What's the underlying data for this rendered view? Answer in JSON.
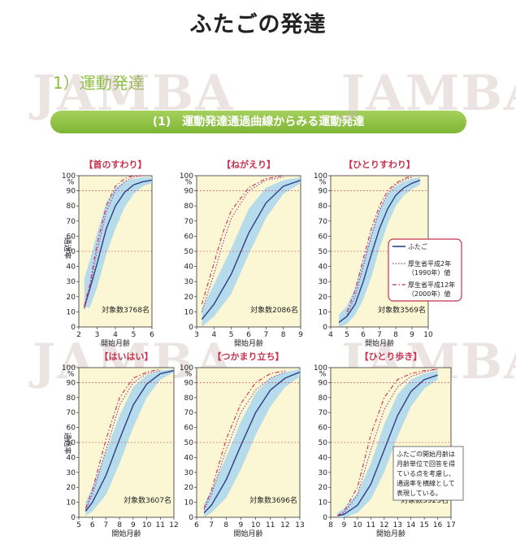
{
  "page_title": "ふたごの発達",
  "section_heading": "1）運動発達",
  "subtitle": "(1)　運動発達通過曲線からみる運動発達",
  "watermark": "JAMBA",
  "colors": {
    "twins": "#2d3f86",
    "band": "#a9d6ee",
    "y1990": "#9a3c9c",
    "y2000": "#c8324f",
    "plot_bg": "#fbf6d3",
    "title_red": "#c8324f",
    "accent_green": "#8bbf3e"
  },
  "legend": {
    "twins": "ふたご",
    "y1990_a": "厚生省平成2年",
    "y1990_b": "（1990年）値",
    "y2000_a": "厚生省平成12年",
    "y2000_b": "（2000年）値"
  },
  "annotation": [
    "ふたごの開始月齢は",
    "月齢単位で回答を得",
    "ている点を考慮し、",
    "通過率を横線として",
    "表現している。"
  ],
  "y_axis_label": "通過率",
  "x_axis_label": "開始月齢",
  "y_percent_mark": "%",
  "chart_data": [
    {
      "type": "line",
      "title": "【首のすわり】",
      "note": "対象数3768名",
      "xlim": [
        2,
        6
      ],
      "xticks": [
        2,
        3,
        4,
        5,
        6
      ],
      "ylim": [
        0,
        100
      ],
      "yticks": [
        0,
        10,
        20,
        30,
        40,
        50,
        60,
        70,
        80,
        90,
        100
      ],
      "series": [
        {
          "key": "twins",
          "x": [
            2.3,
            2.6,
            3.0,
            3.5,
            4.0,
            4.5,
            5.0,
            5.5,
            6.0
          ],
          "y": [
            13,
            25,
            42,
            65,
            80,
            89,
            94,
            96,
            97
          ]
        },
        {
          "key": "y1990",
          "x": [
            2.3,
            2.6,
            3.0,
            3.5,
            4.0,
            4.5,
            5.0,
            5.5
          ],
          "y": [
            12,
            26,
            50,
            76,
            90,
            96,
            99,
            100
          ]
        },
        {
          "key": "y2000",
          "x": [
            2.3,
            2.6,
            3.0,
            3.5,
            4.0,
            4.5,
            5.0,
            5.5
          ],
          "y": [
            14,
            28,
            55,
            80,
            93,
            98,
            100,
            100
          ]
        }
      ],
      "band": {
        "x": [
          2.3,
          2.6,
          3.0,
          3.5,
          4.0,
          4.5,
          5.0,
          5.5,
          6.0
        ],
        "lo": [
          13,
          13,
          26,
          48,
          65,
          79,
          88,
          93,
          95
        ],
        "hi": [
          32,
          44,
          62,
          82,
          92,
          96,
          98,
          99,
          99
        ]
      }
    },
    {
      "type": "line",
      "title": "【ねがえり】",
      "note": "対象数2086名",
      "xlim": [
        3,
        9
      ],
      "xticks": [
        3,
        4,
        5,
        6,
        7,
        8,
        9
      ],
      "ylim": [
        0,
        100
      ],
      "yticks": [
        0,
        10,
        20,
        30,
        40,
        50,
        60,
        70,
        80,
        90,
        100
      ],
      "series": [
        {
          "key": "twins",
          "x": [
            3.3,
            4.0,
            5.0,
            6.0,
            7.0,
            8.0,
            9.0
          ],
          "y": [
            5,
            15,
            35,
            62,
            82,
            93,
            97
          ]
        },
        {
          "key": "y1990",
          "x": [
            3.3,
            4.0,
            4.5,
            5.0,
            6.0,
            7.0,
            8.0
          ],
          "y": [
            10,
            35,
            55,
            72,
            90,
            97,
            99
          ]
        },
        {
          "key": "y2000",
          "x": [
            3.3,
            4.0,
            4.5,
            5.0,
            6.0,
            7.0,
            8.0
          ],
          "y": [
            15,
            42,
            62,
            77,
            92,
            98,
            100
          ]
        }
      ],
      "band": {
        "x": [
          3.3,
          4.0,
          5.0,
          6.0,
          7.0,
          8.0,
          9.0
        ],
        "lo": [
          0,
          7,
          22,
          48,
          72,
          88,
          95
        ],
        "hi": [
          12,
          28,
          52,
          78,
          92,
          97,
          99
        ]
      }
    },
    {
      "type": "line",
      "title": "【ひとりすわり】",
      "note": "対象数3569名",
      "xlim": [
        4,
        10
      ],
      "xticks": [
        4,
        5,
        6,
        7,
        8,
        9,
        10
      ],
      "ylim": [
        0,
        100
      ],
      "yticks": [
        0,
        10,
        20,
        30,
        40,
        50,
        60,
        70,
        80,
        90,
        100
      ],
      "series": [
        {
          "key": "twins",
          "x": [
            4.5,
            5.0,
            5.5,
            6.0,
            6.5,
            7.0,
            7.5,
            8.0,
            8.5,
            9.0,
            9.5
          ],
          "y": [
            3,
            7,
            15,
            30,
            48,
            65,
            78,
            87,
            92,
            95,
            97
          ]
        },
        {
          "key": "y1990",
          "x": [
            5.0,
            5.5,
            6.0,
            6.5,
            7.0,
            7.5,
            8.0,
            8.5,
            9.0
          ],
          "y": [
            8,
            20,
            40,
            60,
            77,
            88,
            94,
            97,
            99
          ]
        },
        {
          "key": "y2000",
          "x": [
            5.0,
            5.5,
            6.0,
            6.5,
            7.0,
            7.5,
            8.0,
            8.5,
            9.0
          ],
          "y": [
            10,
            24,
            45,
            65,
            80,
            90,
            95,
            98,
            100
          ]
        }
      ],
      "band": {
        "x": [
          4.5,
          5.0,
          5.5,
          6.0,
          6.5,
          7.0,
          7.5,
          8.0,
          8.5,
          9.0,
          9.5
        ],
        "lo": [
          0,
          2,
          8,
          18,
          33,
          52,
          68,
          80,
          87,
          91,
          94
        ],
        "hi": [
          8,
          14,
          26,
          44,
          63,
          78,
          88,
          93,
          96,
          98,
          99
        ]
      }
    },
    {
      "type": "line",
      "title": "【はいはい】",
      "note": "対象数3607名",
      "xlim": [
        5,
        12
      ],
      "xticks": [
        5,
        6,
        7,
        8,
        9,
        10,
        11,
        12
      ],
      "ylim": [
        0,
        100
      ],
      "yticks": [
        0,
        10,
        20,
        30,
        40,
        50,
        60,
        70,
        80,
        90,
        100
      ],
      "series": [
        {
          "key": "twins",
          "x": [
            5.5,
            6.0,
            7.0,
            8.0,
            9.0,
            10.0,
            11.0,
            12.0
          ],
          "y": [
            4,
            10,
            28,
            52,
            75,
            89,
            96,
            98
          ]
        },
        {
          "key": "y1990",
          "x": [
            5.5,
            6.0,
            7.0,
            8.0,
            9.0,
            10.0,
            11.0
          ],
          "y": [
            5,
            15,
            45,
            75,
            90,
            96,
            98
          ]
        },
        {
          "key": "y2000",
          "x": [
            5.5,
            6.0,
            7.0,
            8.0,
            9.0,
            10.0,
            11.0
          ],
          "y": [
            6,
            18,
            52,
            80,
            93,
            97,
            99
          ]
        }
      ],
      "band": {
        "x": [
          5.5,
          6.0,
          7.0,
          8.0,
          9.0,
          10.0,
          11.0,
          12.0
        ],
        "lo": [
          1,
          4,
          15,
          36,
          60,
          80,
          92,
          97
        ],
        "hi": [
          10,
          20,
          44,
          68,
          87,
          95,
          98,
          99
        ]
      }
    },
    {
      "type": "line",
      "title": "【つかまり立ち】",
      "note": "対象数3696名",
      "xlim": [
        6,
        13
      ],
      "xticks": [
        6,
        7,
        8,
        9,
        10,
        11,
        12,
        13
      ],
      "ylim": [
        0,
        100
      ],
      "yticks": [
        0,
        10,
        20,
        30,
        40,
        50,
        60,
        70,
        80,
        90,
        100
      ],
      "series": [
        {
          "key": "twins",
          "x": [
            6.5,
            7.0,
            8.0,
            9.0,
            10.0,
            11.0,
            12.0,
            13.0
          ],
          "y": [
            3,
            8,
            25,
            48,
            70,
            85,
            93,
            97
          ]
        },
        {
          "key": "y1990",
          "x": [
            6.5,
            7.0,
            8.0,
            9.0,
            10.0,
            11.0,
            12.0
          ],
          "y": [
            5,
            15,
            45,
            70,
            85,
            93,
            97
          ]
        },
        {
          "key": "y2000",
          "x": [
            6.5,
            7.0,
            8.0,
            9.0,
            10.0,
            11.0,
            12.0
          ],
          "y": [
            6,
            18,
            52,
            76,
            90,
            96,
            98
          ]
        }
      ],
      "band": {
        "x": [
          6.5,
          7.0,
          8.0,
          9.0,
          10.0,
          11.0,
          12.0,
          13.0
        ],
        "lo": [
          0,
          3,
          13,
          32,
          55,
          74,
          87,
          94
        ],
        "hi": [
          9,
          18,
          40,
          64,
          83,
          93,
          97,
          99
        ]
      }
    },
    {
      "type": "line",
      "title": "【ひとり歩き】",
      "note": "対象数3923名",
      "xlim": [
        8,
        17
      ],
      "xticks": [
        8,
        9,
        10,
        11,
        12,
        13,
        14,
        15,
        16,
        17
      ],
      "ylim": [
        0,
        100
      ],
      "yticks": [
        0,
        10,
        20,
        30,
        40,
        50,
        60,
        70,
        80,
        90,
        100
      ],
      "series": [
        {
          "key": "twins",
          "x": [
            8.5,
            9.0,
            10.0,
            11.0,
            12.0,
            13.0,
            14.0,
            15.0,
            16.0
          ],
          "y": [
            1,
            2,
            8,
            22,
            45,
            68,
            84,
            92,
            95
          ]
        },
        {
          "key": "y1990",
          "x": [
            8.5,
            9.0,
            10.0,
            11.0,
            12.0,
            13.0,
            14.0,
            15.0,
            16.0
          ],
          "y": [
            1,
            3,
            15,
            45,
            72,
            87,
            94,
            97,
            99
          ]
        },
        {
          "key": "y2000",
          "x": [
            8.5,
            9.0,
            10.0,
            11.0,
            12.0,
            13.0,
            14.0,
            15.0,
            16.0
          ],
          "y": [
            1,
            4,
            20,
            55,
            80,
            92,
            96,
            98,
            99
          ]
        }
      ],
      "band": {
        "x": [
          8.5,
          9.0,
          10.0,
          11.0,
          12.0,
          13.0,
          14.0,
          15.0,
          16.0
        ],
        "lo": [
          0,
          0,
          3,
          12,
          30,
          54,
          74,
          86,
          92
        ],
        "hi": [
          3,
          6,
          16,
          36,
          62,
          82,
          92,
          96,
          98
        ]
      }
    }
  ]
}
